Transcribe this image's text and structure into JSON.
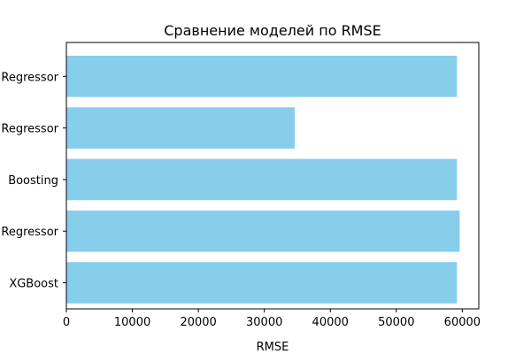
{
  "chart_data": {
    "type": "bar",
    "orientation": "horizontal",
    "title": "Сравнение моделей по RMSE",
    "xlabel": "RMSE",
    "ylabel": "",
    "categories": [
      "XGBoost",
      "Regressor",
      "Boosting",
      "Regressor",
      "Regressor"
    ],
    "values": [
      59200,
      59600,
      59200,
      34600,
      59200
    ],
    "xlim": [
      0,
      62500
    ],
    "xticks": [
      0,
      10000,
      20000,
      30000,
      40000,
      50000,
      60000
    ],
    "xtick_labels": [
      "0",
      "10000",
      "20000",
      "30000",
      "40000",
      "50000",
      "60000"
    ],
    "grid": false,
    "legend": "none",
    "bar_color": "#87ceeb"
  }
}
